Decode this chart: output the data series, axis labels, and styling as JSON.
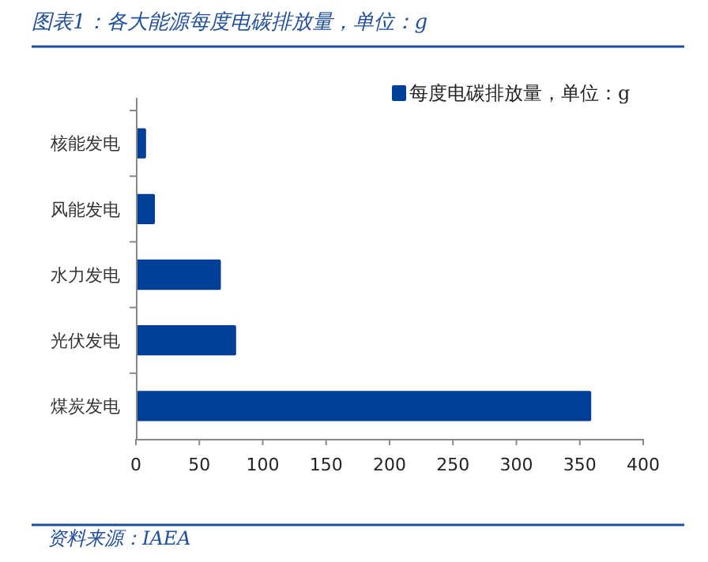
{
  "chart_data": {
    "type": "bar",
    "orientation": "horizontal",
    "title": "图表1：各大能源每度电碳排放量，单位：g",
    "categories": [
      "核能发电",
      "风能发电",
      "水力发电",
      "光伏发电",
      "煤炭发电"
    ],
    "series": [
      {
        "name": "每度电碳排放量，单位：g",
        "color": "#003f98",
        "values": [
          8,
          15,
          67,
          79,
          359
        ]
      }
    ],
    "xlim": [
      0,
      400
    ],
    "xticks": [
      0,
      50,
      100,
      150,
      200,
      250,
      300,
      350,
      400
    ],
    "grid": false,
    "legend": "top right",
    "annotations": [
      "资料来源：IAEA"
    ]
  }
}
